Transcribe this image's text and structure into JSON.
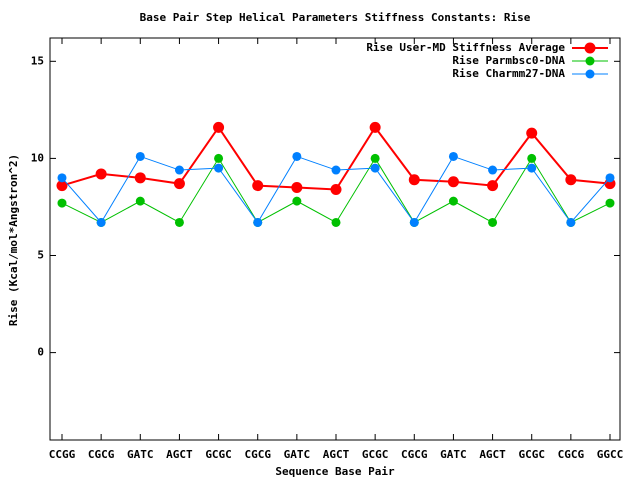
{
  "chart_data": {
    "type": "line",
    "title": "Base Pair Step Helical Parameters Stiffness Constants: Rise",
    "x_label": "Sequence Base Pair",
    "y_label": "Rise (Kcal/mol*Angstron^2)",
    "categories": [
      "CCGG",
      "CGCG",
      "GATC",
      "AGCT",
      "GCGC",
      "CGCG",
      "GATC",
      "AGCT",
      "GCGC",
      "CGCG",
      "GATC",
      "AGCT",
      "GCGC",
      "CGCG",
      "GGCC"
    ],
    "series": [
      {
        "name": "Rise User-MD Stiffness Average",
        "color": "#ff0000",
        "values": [
          8.6,
          9.2,
          9.0,
          8.7,
          11.6,
          8.6,
          8.5,
          8.4,
          11.6,
          8.9,
          8.8,
          8.6,
          11.3,
          8.9,
          8.7
        ]
      },
      {
        "name": "Rise Parmbsc0-DNA",
        "color": "#00c000",
        "values": [
          7.7,
          6.7,
          7.8,
          6.7,
          10.0,
          6.7,
          7.8,
          6.7,
          10.0,
          6.7,
          7.8,
          6.7,
          10.0,
          6.7,
          7.7
        ]
      },
      {
        "name": "Rise Charmm27-DNA",
        "color": "#0080ff",
        "values": [
          9.0,
          6.7,
          10.1,
          9.4,
          9.5,
          6.7,
          10.1,
          9.4,
          9.5,
          6.7,
          10.1,
          9.4,
          9.5,
          6.7,
          9.0
        ]
      }
    ],
    "ylim": [
      -4.5,
      16.2
    ],
    "yticks": [
      0,
      5,
      10,
      15
    ],
    "legend": "top-right"
  }
}
